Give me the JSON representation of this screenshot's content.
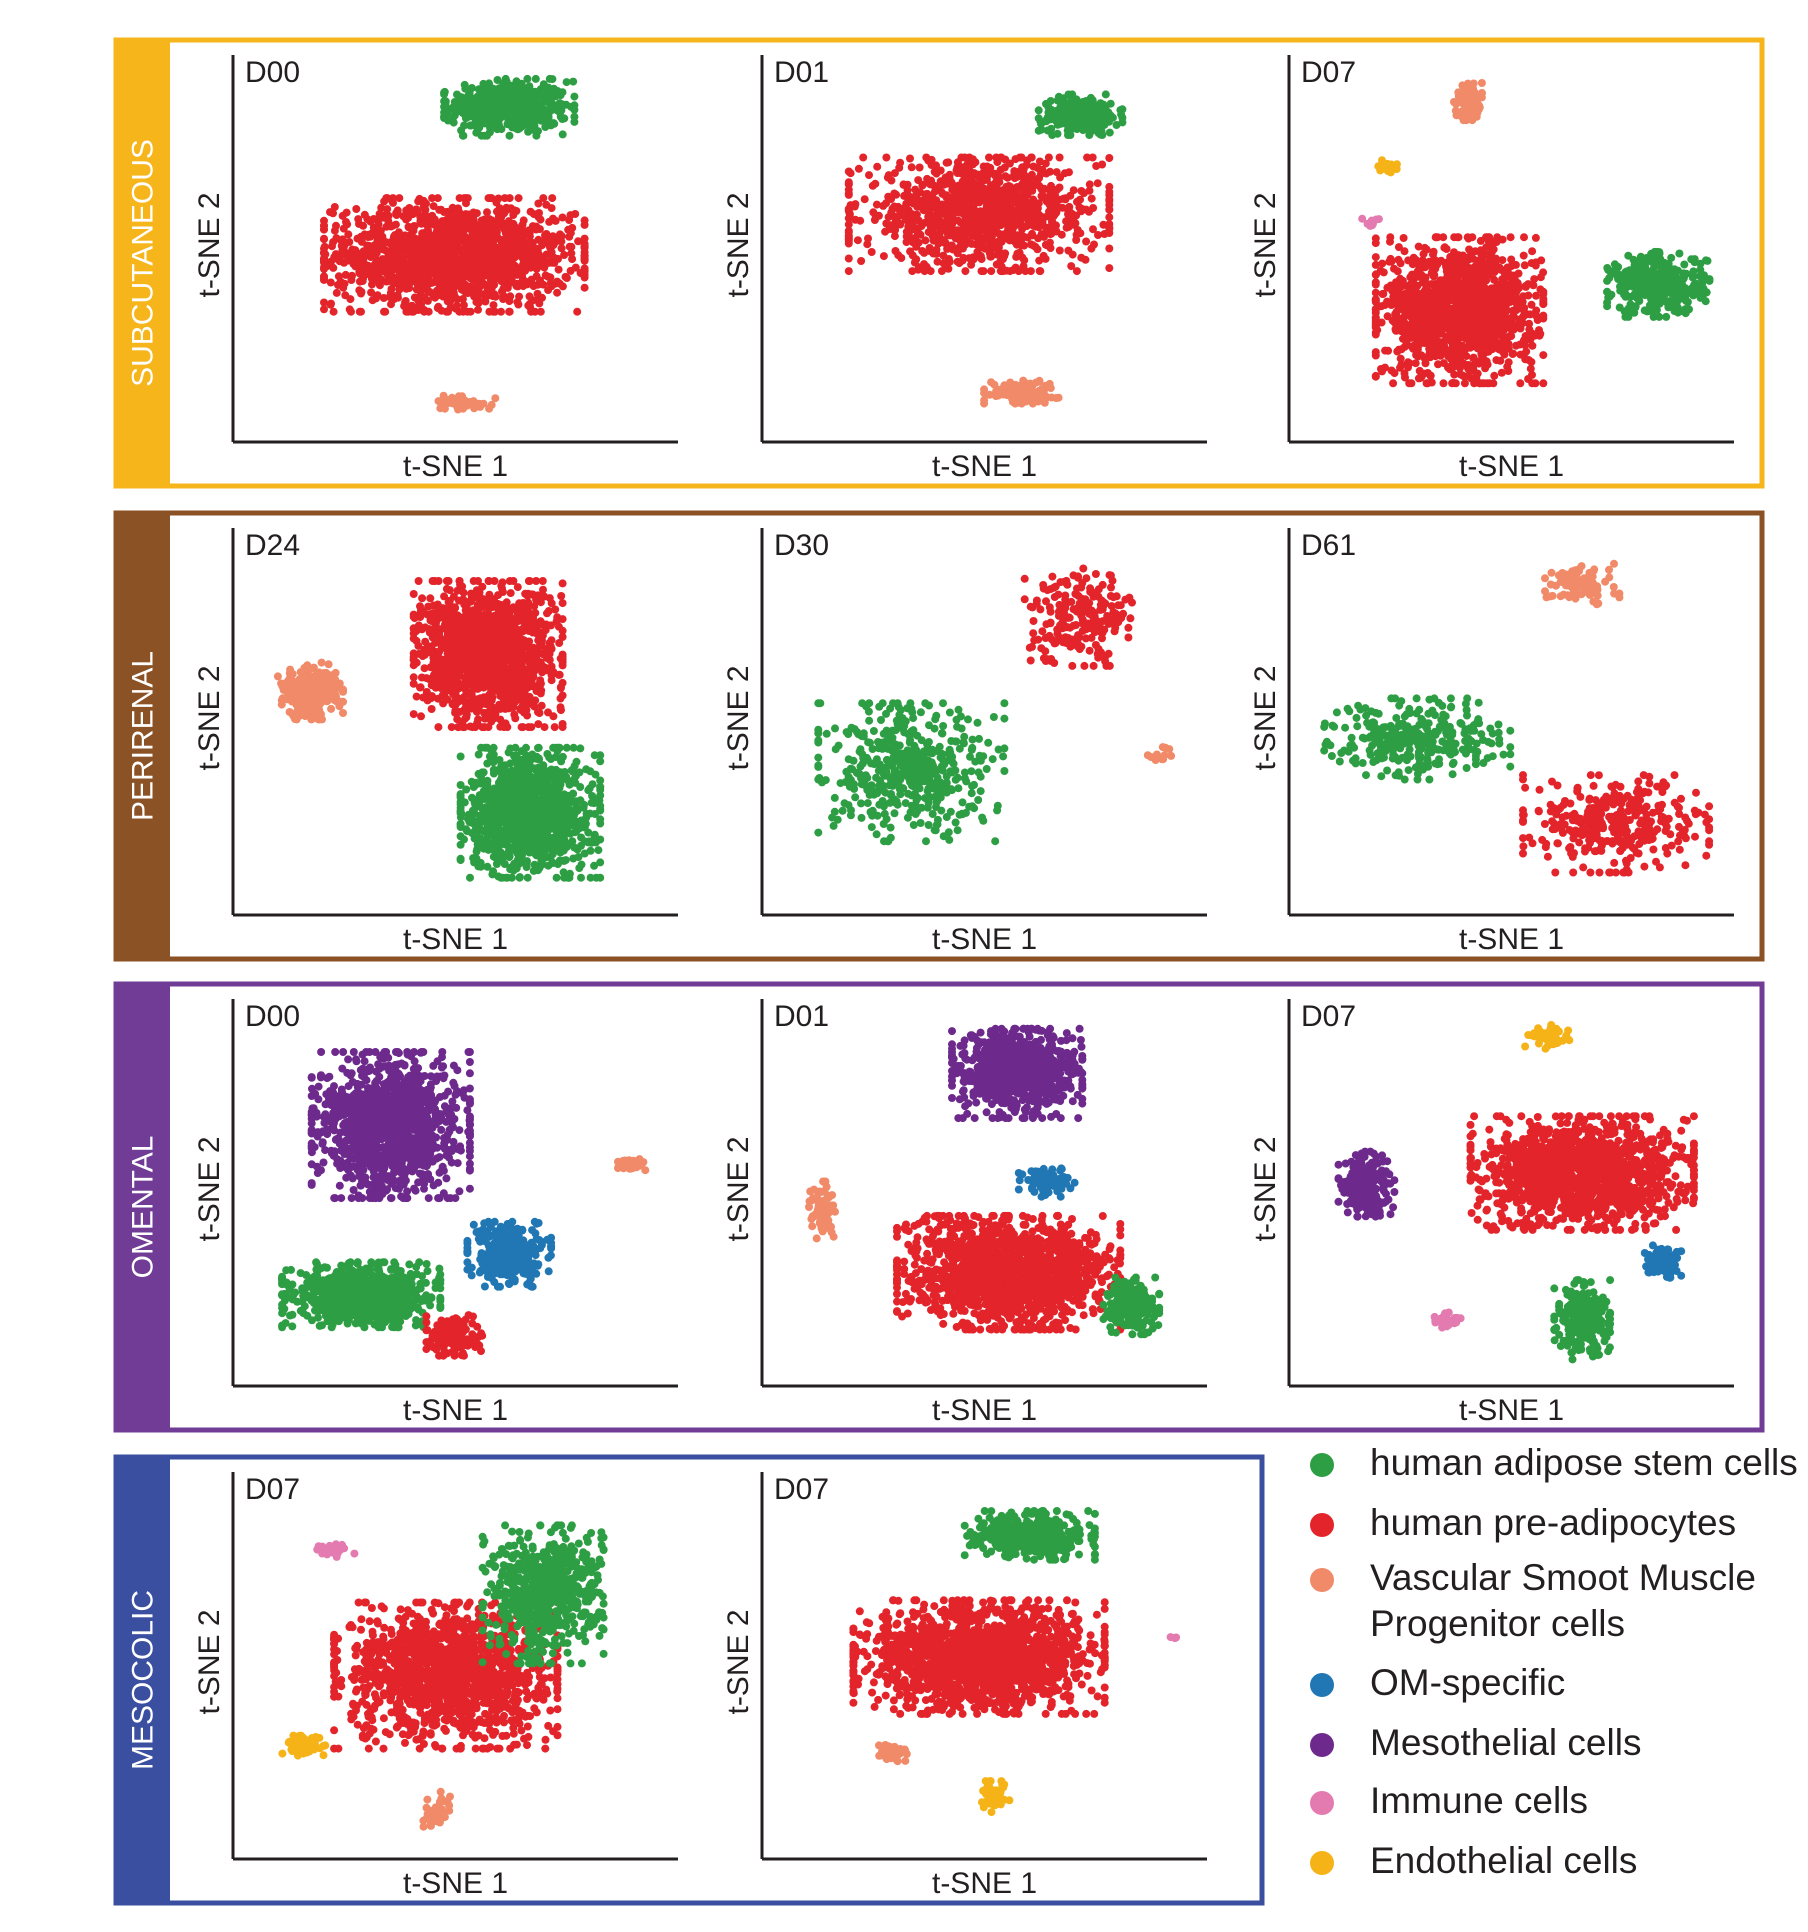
{
  "colors": {
    "human adipose stem cells": "#2e9e44",
    "human pre-adipocytes": "#e3242b",
    "Vascular Smoot Muscle Progenitor cells": "#f08a68",
    "OM-specific": "#2077b4",
    "Mesothelial cells": "#6d2a8c",
    "Immune cells": "#e37ab0",
    "Endothelial cells": "#f5b318",
    "unassigned": "#c8c8c8"
  },
  "axis_labels": {
    "x": "t-SNE 1",
    "y": "t-SNE 2"
  },
  "legend": [
    {
      "label": "human adipose stem cells",
      "color": "#2e9e44"
    },
    {
      "label": "human pre-adipocytes",
      "color": "#e3242b"
    },
    {
      "label": "Vascular Smoot Muscle\nProgenitor cells",
      "color": "#f08a68"
    },
    {
      "label": "OM-specific",
      "color": "#2077b4"
    },
    {
      "label": "Mesothelial cells",
      "color": "#6d2a8c"
    },
    {
      "label": "Immune cells",
      "color": "#e37ab0"
    },
    {
      "label": "Endothelial cells",
      "color": "#f5b318"
    }
  ],
  "chart_data": [
    {
      "group": "SUBCUTANEOUS",
      "group_color": "#f5b51b",
      "panels": [
        {
          "title": "D00",
          "type": "scatter",
          "xlabel": "t-SNE 1",
          "ylabel": "t-SNE 2",
          "xlim": [
            0,
            100
          ],
          "ylim": [
            0,
            100
          ],
          "clusters": [
            {
              "cell_type": "human adipose stem cells",
              "center": [
                62,
                88
              ],
              "spread": [
                14,
                7
              ],
              "n": 520
            },
            {
              "cell_type": "human pre-adipocytes",
              "center": [
                49,
                48
              ],
              "spread": [
                28,
                14
              ],
              "n": 1500
            },
            {
              "cell_type": "Vascular Smoot Muscle Progenitor cells",
              "center": [
                51,
                8
              ],
              "spread": [
                7,
                2
              ],
              "n": 50
            }
          ]
        },
        {
          "title": "D01",
          "type": "scatter",
          "xlabel": "t-SNE 1",
          "ylabel": "t-SNE 2",
          "xlim": [
            0,
            100
          ],
          "ylim": [
            0,
            100
          ],
          "clusters": [
            {
              "cell_type": "human adipose stem cells",
              "center": [
                72,
                86
              ],
              "spread": [
                9,
                5
              ],
              "n": 240
            },
            {
              "cell_type": "human pre-adipocytes",
              "center": [
                48,
                59
              ],
              "spread": [
                28,
                14
              ],
              "n": 1050
            },
            {
              "cell_type": "Vascular Smoot Muscle Progenitor cells",
              "center": [
                58,
                11
              ],
              "spread": [
                8,
                3
              ],
              "n": 120
            }
          ]
        },
        {
          "title": "D07",
          "type": "scatter",
          "xlabel": "t-SNE 1",
          "ylabel": "t-SNE 2",
          "xlim": [
            0,
            100
          ],
          "ylim": [
            0,
            100
          ],
          "clusters": [
            {
              "cell_type": "human adipose stem cells",
              "center": [
                84,
                40
              ],
              "spread": [
                11,
                8
              ],
              "n": 360
            },
            {
              "cell_type": "human pre-adipocytes",
              "center": [
                37,
                33
              ],
              "spread": [
                18,
                18
              ],
              "n": 1300
            },
            {
              "cell_type": "Vascular Smoot Muscle Progenitor cells",
              "center": [
                39,
                90
              ],
              "spread": [
                3,
                5
              ],
              "n": 80
            },
            {
              "cell_type": "Endothelial cells",
              "center": [
                20,
                72
              ],
              "spread": [
                2,
                1.5
              ],
              "n": 20
            },
            {
              "cell_type": "Immune cells",
              "center": [
                16,
                57
              ],
              "spread": [
                2,
                1.5
              ],
              "n": 10
            }
          ]
        }
      ]
    },
    {
      "group": "PERIRENAL",
      "group_color": "#8b5225",
      "panels": [
        {
          "title": "D24",
          "type": "scatter",
          "xlabel": "t-SNE 1",
          "ylabel": "t-SNE 2",
          "xlim": [
            0,
            100
          ],
          "ylim": [
            0,
            100
          ],
          "clusters": [
            {
              "cell_type": "human pre-adipocytes",
              "center": [
                57,
                68
              ],
              "spread": [
                16,
                18
              ],
              "n": 1400
            },
            {
              "cell_type": "human adipose stem cells",
              "center": [
                67,
                25
              ],
              "spread": [
                15,
                16
              ],
              "n": 1100
            },
            {
              "cell_type": "Vascular Smoot Muscle Progenitor cells",
              "center": [
                15,
                58
              ],
              "spread": [
                7,
                7
              ],
              "n": 260
            }
          ]
        },
        {
          "title": "D30",
          "type": "scatter",
          "xlabel": "t-SNE 1",
          "ylabel": "t-SNE 2",
          "xlim": [
            0,
            100
          ],
          "ylim": [
            0,
            100
          ],
          "clusters": [
            {
              "cell_type": "human adipose stem cells",
              "center": [
                32,
                36
              ],
              "spread": [
                20,
                17
              ],
              "n": 480
            },
            {
              "cell_type": "human pre-adipocytes",
              "center": [
                72,
                78
              ],
              "spread": [
                12,
                12
              ],
              "n": 230
            },
            {
              "cell_type": "Vascular Smoot Muscle Progenitor cells",
              "center": [
                91,
                41
              ],
              "spread": [
                3,
                2
              ],
              "n": 12
            }
          ]
        },
        {
          "title": "D61",
          "type": "scatter",
          "xlabel": "t-SNE 1",
          "ylabel": "t-SNE 2",
          "xlim": [
            0,
            100
          ],
          "ylim": [
            0,
            100
          ],
          "clusters": [
            {
              "cell_type": "human adipose stem cells",
              "center": [
                27,
                45
              ],
              "spread": [
                20,
                10
              ],
              "n": 300
            },
            {
              "cell_type": "human pre-adipocytes",
              "center": [
                74,
                22
              ],
              "spread": [
                20,
                12
              ],
              "n": 330
            },
            {
              "cell_type": "Vascular Smoot Muscle Progenitor cells",
              "center": [
                66,
                87
              ],
              "spread": [
                8,
                5
              ],
              "n": 100
            }
          ]
        }
      ]
    },
    {
      "group": "OMENTAL",
      "group_color": "#703c96",
      "panels": [
        {
          "title": "D00",
          "type": "scatter",
          "xlabel": "t-SNE 1",
          "ylabel": "t-SNE 2",
          "xlim": [
            0,
            100
          ],
          "ylim": [
            0,
            100
          ],
          "clusters": [
            {
              "cell_type": "Mesothelial cells",
              "center": [
                34,
                68
              ],
              "spread": [
                17,
                18
              ],
              "n": 1200
            },
            {
              "cell_type": "OM-specific",
              "center": [
                62,
                33
              ],
              "spread": [
                9,
                8
              ],
              "n": 300
            },
            {
              "cell_type": "human adipose stem cells",
              "center": [
                27,
                22
              ],
              "spread": [
                17,
                8
              ],
              "n": 750
            },
            {
              "cell_type": "human pre-adipocytes",
              "center": [
                49,
                11
              ],
              "spread": [
                6,
                5
              ],
              "n": 170
            },
            {
              "cell_type": "Vascular Smoot Muscle Progenitor cells",
              "center": [
                91,
                57
              ],
              "spread": [
                3,
                2
              ],
              "n": 30
            }
          ]
        },
        {
          "title": "D01",
          "type": "scatter",
          "xlabel": "t-SNE 1",
          "ylabel": "t-SNE 2",
          "xlim": [
            0,
            100
          ],
          "ylim": [
            0,
            100
          ],
          "clusters": [
            {
              "cell_type": "Mesothelial cells",
              "center": [
                57,
                82
              ],
              "spread": [
                14,
                11
              ],
              "n": 900
            },
            {
              "cell_type": "OM-specific",
              "center": [
                64,
                53
              ],
              "spread": [
                6,
                4
              ],
              "n": 80
            },
            {
              "cell_type": "human pre-adipocytes",
              "center": [
                55,
                28
              ],
              "spread": [
                24,
                14
              ],
              "n": 1500
            },
            {
              "cell_type": "human adipose stem cells",
              "center": [
                84,
                19
              ],
              "spread": [
                6,
                7
              ],
              "n": 230
            },
            {
              "cell_type": "Vascular Smoot Muscle Progenitor cells",
              "center": [
                11,
                45
              ],
              "spread": [
                3,
                7
              ],
              "n": 70
            }
          ]
        },
        {
          "title": "D07",
          "type": "scatter",
          "xlabel": "t-SNE 1",
          "ylabel": "t-SNE 2",
          "xlim": [
            0,
            100
          ],
          "ylim": [
            0,
            100
          ],
          "clusters": [
            {
              "cell_type": "human pre-adipocytes",
              "center": [
                66,
                55
              ],
              "spread": [
                24,
                14
              ],
              "n": 1300
            },
            {
              "cell_type": "Mesothelial cells",
              "center": [
                15,
                52
              ],
              "spread": [
                6,
                8
              ],
              "n": 230
            },
            {
              "cell_type": "OM-specific",
              "center": [
                85,
                31
              ],
              "spread": [
                4,
                4
              ],
              "n": 90
            },
            {
              "cell_type": "human adipose stem cells",
              "center": [
                66,
                15
              ],
              "spread": [
                6,
                10
              ],
              "n": 250
            },
            {
              "cell_type": "Endothelial cells",
              "center": [
                58,
                92
              ],
              "spread": [
                5,
                3
              ],
              "n": 60
            },
            {
              "cell_type": "Immune cells",
              "center": [
                34,
                15
              ],
              "spread": [
                3,
                2
              ],
              "n": 30
            }
          ]
        }
      ]
    },
    {
      "group": "MESOCOLIC",
      "group_color": "#3a4fa0",
      "panels": [
        {
          "title": "D07",
          "type": "scatter",
          "xlabel": "t-SNE 1",
          "ylabel": "t-SNE 2",
          "xlim": [
            0,
            100
          ],
          "ylim": [
            0,
            100
          ],
          "clusters": [
            {
              "cell_type": "human pre-adipocytes",
              "center": [
                47,
                47
              ],
              "spread": [
                24,
                18
              ],
              "n": 1400
            },
            {
              "cell_type": "human adipose stem cells",
              "center": [
                70,
                69
              ],
              "spread": [
                13,
                17
              ],
              "n": 620
            },
            {
              "cell_type": "Endothelial cells",
              "center": [
                13,
                28
              ],
              "spread": [
                5,
                3
              ],
              "n": 70
            },
            {
              "cell_type": "Vascular Smoot Muscle Progenitor cells",
              "center": [
                45,
                10
              ],
              "spread": [
                3,
                5
              ],
              "n": 50
            },
            {
              "cell_type": "Immune cells",
              "center": [
                21,
                81
              ],
              "spread": [
                4,
                2
              ],
              "n": 25
            }
          ]
        },
        {
          "title": "D07",
          "type": "scatter",
          "xlabel": "t-SNE 1",
          "ylabel": "t-SNE 2",
          "xlim": [
            0,
            100
          ],
          "ylim": [
            0,
            100
          ],
          "clusters": [
            {
              "cell_type": "human pre-adipocytes",
              "center": [
                48,
                52
              ],
              "spread": [
                27,
                14
              ],
              "n": 1500
            },
            {
              "cell_type": "human adipose stem cells",
              "center": [
                60,
                85
              ],
              "spread": [
                14,
                6
              ],
              "n": 420
            },
            {
              "cell_type": "Vascular Smoot Muscle Progenitor cells",
              "center": [
                27,
                26
              ],
              "spread": [
                4,
                2
              ],
              "n": 60
            },
            {
              "cell_type": "Endothelial cells",
              "center": [
                52,
                14
              ],
              "spread": [
                3,
                4
              ],
              "n": 60
            },
            {
              "cell_type": "Immune cells",
              "center": [
                94,
                57
              ],
              "spread": [
                1,
                1
              ],
              "n": 4
            }
          ]
        }
      ]
    }
  ]
}
